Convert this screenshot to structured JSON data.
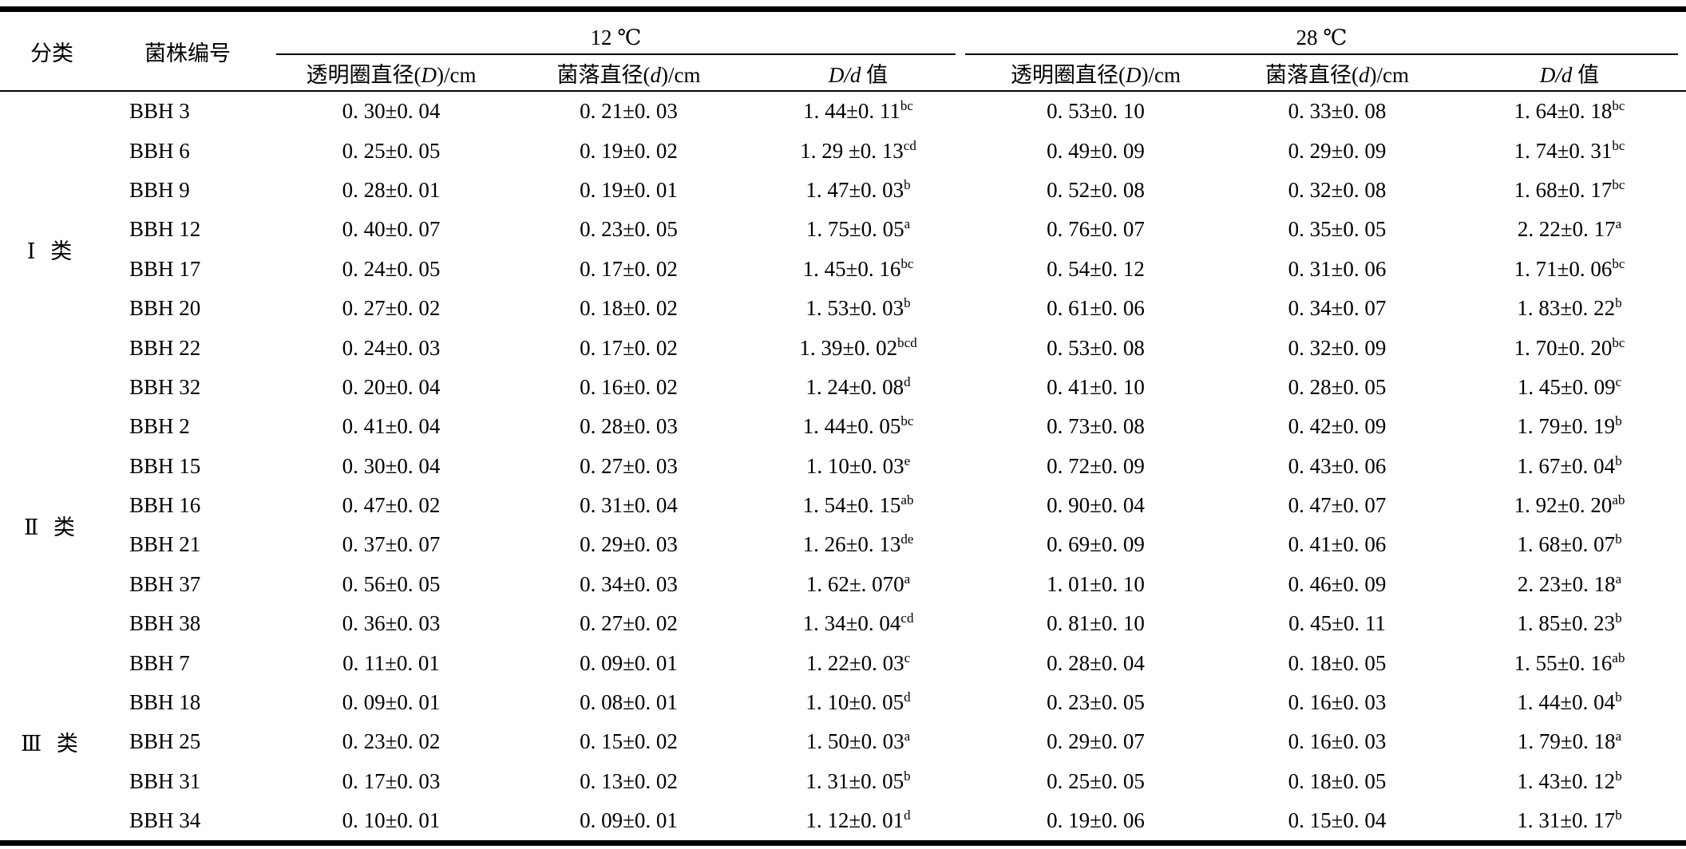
{
  "table": {
    "col_category": "分类",
    "col_strain": "菌株编号",
    "group_12": "12 ℃",
    "group_28": "28 ℃",
    "sub_clear": {
      "pre": "透明圈直径(",
      "var": "D",
      "post": ")/cm"
    },
    "sub_colony": {
      "pre": "菌落直径(",
      "var": "d",
      "post": ")/cm"
    },
    "sub_ratio": {
      "var": "D/d",
      "post": " 值"
    },
    "groups": [
      {
        "label": "Ⅰ 类",
        "rows": [
          {
            "strain": "BBH 3",
            "d12D": "0. 30±0. 04",
            "d12d": "0. 21±0. 03",
            "r12": "1. 44±0. 11",
            "s12": "bc",
            "d28D": "0. 53±0. 10",
            "d28d": "0. 33±0. 08",
            "r28": "1. 64±0. 18",
            "s28": "bc"
          },
          {
            "strain": "BBH 6",
            "d12D": "0. 25±0. 05",
            "d12d": "0. 19±0. 02",
            "r12": "1. 29 ±0. 13",
            "s12": "cd",
            "d28D": "0. 49±0. 09",
            "d28d": "0. 29±0. 09",
            "r28": "1. 74±0. 31",
            "s28": "bc"
          },
          {
            "strain": "BBH 9",
            "d12D": "0. 28±0. 01",
            "d12d": "0. 19±0. 01",
            "r12": "1. 47±0. 03",
            "s12": "b",
            "d28D": "0. 52±0. 08",
            "d28d": "0. 32±0. 08",
            "r28": "1. 68±0. 17",
            "s28": "bc"
          },
          {
            "strain": "BBH 12",
            "d12D": "0. 40±0. 07",
            "d12d": "0. 23±0. 05",
            "r12": "1. 75±0. 05",
            "s12": "a",
            "d28D": "0. 76±0. 07",
            "d28d": "0. 35±0. 05",
            "r28": "2. 22±0. 17",
            "s28": "a"
          },
          {
            "strain": "BBH 17",
            "d12D": "0. 24±0. 05",
            "d12d": "0. 17±0. 02",
            "r12": "1. 45±0. 16",
            "s12": "bc",
            "d28D": "0. 54±0. 12",
            "d28d": "0. 31±0. 06",
            "r28": "1. 71±0. 06",
            "s28": "bc"
          },
          {
            "strain": "BBH 20",
            "d12D": "0. 27±0. 02",
            "d12d": "0. 18±0. 02",
            "r12": "1. 53±0. 03",
            "s12": "b",
            "d28D": "0. 61±0. 06",
            "d28d": "0. 34±0. 07",
            "r28": "1. 83±0. 22",
            "s28": "b"
          },
          {
            "strain": "BBH 22",
            "d12D": "0. 24±0. 03",
            "d12d": "0. 17±0. 02",
            "r12": "1. 39±0. 02",
            "s12": "bcd",
            "d28D": "0. 53±0. 08",
            "d28d": "0. 32±0. 09",
            "r28": "1. 70±0. 20",
            "s28": "bc"
          },
          {
            "strain": "BBH 32",
            "d12D": "0. 20±0. 04",
            "d12d": "0. 16±0. 02",
            "r12": "1. 24±0. 08",
            "s12": "d",
            "d28D": "0. 41±0. 10",
            "d28d": "0. 28±0. 05",
            "r28": "1. 45±0. 09",
            "s28": "c"
          }
        ]
      },
      {
        "label": "Ⅱ 类",
        "rows": [
          {
            "strain": "BBH 2",
            "d12D": "0. 41±0. 04",
            "d12d": "0. 28±0. 03",
            "r12": "1. 44±0. 05",
            "s12": "bc",
            "d28D": "0. 73±0. 08",
            "d28d": "0. 42±0. 09",
            "r28": "1. 79±0. 19",
            "s28": "b"
          },
          {
            "strain": "BBH 15",
            "d12D": "0. 30±0. 04",
            "d12d": "0. 27±0. 03",
            "r12": "1. 10±0. 03",
            "s12": "e",
            "d28D": "0. 72±0. 09",
            "d28d": "0. 43±0. 06",
            "r28": "1. 67±0. 04",
            "s28": "b"
          },
          {
            "strain": "BBH 16",
            "d12D": "0. 47±0. 02",
            "d12d": "0. 31±0. 04",
            "r12": "1. 54±0. 15",
            "s12": "ab",
            "d28D": "0. 90±0. 04",
            "d28d": "0. 47±0. 07",
            "r28": "1. 92±0. 20",
            "s28": "ab"
          },
          {
            "strain": "BBH 21",
            "d12D": "0. 37±0. 07",
            "d12d": "0. 29±0. 03",
            "r12": "1. 26±0. 13",
            "s12": "de",
            "d28D": "0. 69±0. 09",
            "d28d": "0. 41±0. 06",
            "r28": "1. 68±0. 07",
            "s28": "b"
          },
          {
            "strain": "BBH 37",
            "d12D": "0. 56±0. 05",
            "d12d": "0. 34±0. 03",
            "r12": "1. 62±. 070",
            "s12": "a",
            "d28D": "1. 01±0. 10",
            "d28d": "0. 46±0. 09",
            "r28": "2. 23±0. 18",
            "s28": "a"
          },
          {
            "strain": "BBH 38",
            "d12D": "0. 36±0. 03",
            "d12d": "0. 27±0. 02",
            "r12": "1. 34±0. 04",
            "s12": "cd",
            "d28D": "0. 81±0. 10",
            "d28d": "0. 45±0. 11",
            "r28": "1. 85±0. 23",
            "s28": "b"
          }
        ]
      },
      {
        "label": "Ⅲ 类",
        "rows": [
          {
            "strain": "BBH 7",
            "d12D": "0. 11±0. 01",
            "d12d": "0. 09±0. 01",
            "r12": "1. 22±0. 03",
            "s12": "c",
            "d28D": "0. 28±0. 04",
            "d28d": "0. 18±0. 05",
            "r28": "1. 55±0. 16",
            "s28": "ab"
          },
          {
            "strain": "BBH 18",
            "d12D": "0. 09±0. 01",
            "d12d": "0. 08±0. 01",
            "r12": "1. 10±0. 05",
            "s12": "d",
            "d28D": "0. 23±0. 05",
            "d28d": "0. 16±0. 03",
            "r28": "1. 44±0. 04",
            "s28": "b"
          },
          {
            "strain": "BBH 25",
            "d12D": "0. 23±0. 02",
            "d12d": "0. 15±0. 02",
            "r12": "1. 50±0. 03",
            "s12": "a",
            "d28D": "0. 29±0. 07",
            "d28d": "0. 16±0. 03",
            "r28": "1. 79±0. 18",
            "s28": "a"
          },
          {
            "strain": "BBH 31",
            "d12D": "0. 17±0. 03",
            "d12d": "0. 13±0. 02",
            "r12": "1. 31±0. 05",
            "s12": "b",
            "d28D": "0. 25±0. 05",
            "d28d": "0. 18±0. 05",
            "r28": "1. 43±0. 12",
            "s28": "b"
          },
          {
            "strain": "BBH 34",
            "d12D": "0. 10±0. 01",
            "d12d": "0. 09±0. 01",
            "r12": "1. 12±0. 01",
            "s12": "d",
            "d28D": "0. 19±0. 06",
            "d28d": "0. 15±0. 04",
            "r28": "1. 31±0. 17",
            "s28": "b"
          }
        ]
      }
    ]
  }
}
